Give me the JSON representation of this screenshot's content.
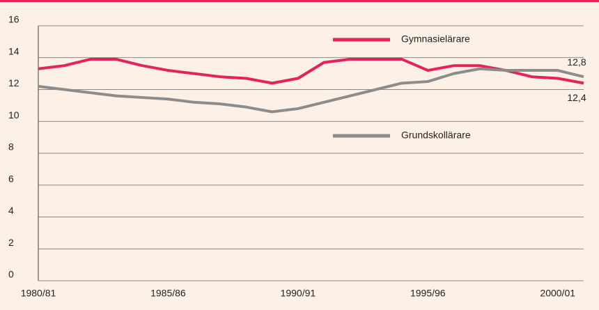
{
  "chart_data": {
    "type": "line",
    "categories": [
      "1980/81",
      null,
      null,
      null,
      null,
      "1985/86",
      null,
      null,
      null,
      null,
      "1990/91",
      null,
      null,
      null,
      null,
      "1995/96",
      null,
      null,
      null,
      null,
      "2000/01",
      null
    ],
    "series": [
      {
        "name": "Gymnasielärare",
        "color": "#e5235a",
        "values": [
          13.3,
          13.5,
          13.9,
          13.9,
          13.5,
          13.2,
          13.0,
          12.8,
          12.7,
          12.4,
          12.7,
          13.7,
          13.9,
          13.9,
          13.9,
          13.2,
          13.5,
          13.5,
          13.2,
          12.8,
          12.7,
          12.4
        ],
        "value_labels": [
          null,
          null,
          null,
          null,
          null,
          null,
          null,
          null,
          null,
          null,
          null,
          null,
          null,
          null,
          null,
          null,
          null,
          null,
          null,
          null,
          null,
          "12,4"
        ]
      },
      {
        "name": "Grundskollärare",
        "color": "#8c8c8c",
        "values": [
          12.2,
          12.0,
          11.8,
          11.6,
          11.5,
          11.4,
          11.2,
          11.1,
          10.9,
          10.6,
          10.8,
          11.2,
          11.6,
          12.0,
          12.4,
          12.5,
          13.0,
          13.3,
          13.2,
          13.2,
          13.2,
          12.8
        ],
        "value_labels": [
          null,
          null,
          null,
          null,
          null,
          null,
          null,
          null,
          null,
          null,
          null,
          null,
          null,
          null,
          null,
          null,
          null,
          null,
          null,
          null,
          null,
          "12,8"
        ]
      }
    ],
    "ylim": [
      0,
      16
    ],
    "yticks": [
      0,
      2,
      4,
      6,
      8,
      10,
      12,
      14,
      16
    ],
    "grid": true
  }
}
